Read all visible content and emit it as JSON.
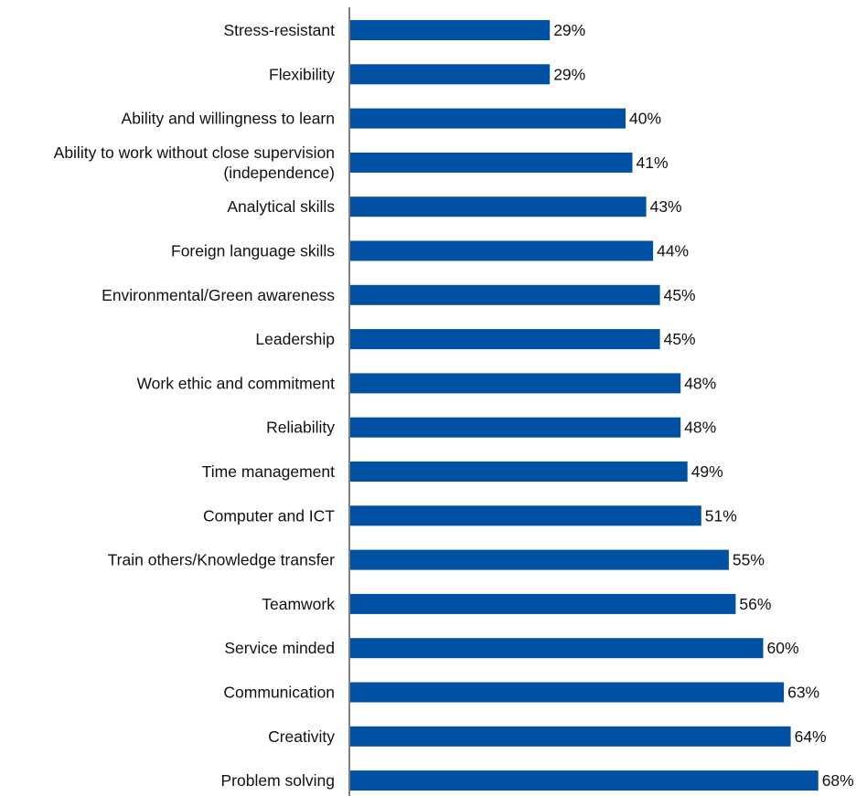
{
  "chart_data": {
    "type": "bar",
    "orientation": "horizontal",
    "title": "",
    "xlabel": "",
    "ylabel": "",
    "categories": [
      [
        "Stress-resistant"
      ],
      [
        "Flexibility"
      ],
      [
        "Ability and willingness to learn"
      ],
      [
        "Ability to work without close supervision",
        "(independence)"
      ],
      [
        "Analytical skills"
      ],
      [
        "Foreign language skills"
      ],
      [
        "Environmental/Green awareness"
      ],
      [
        "Leadership"
      ],
      [
        "Work ethic and commitment"
      ],
      [
        "Reliability"
      ],
      [
        "Time management"
      ],
      [
        "Computer and ICT"
      ],
      [
        "Train others/Knowledge transfer"
      ],
      [
        "Teamwork"
      ],
      [
        "Service minded"
      ],
      [
        "Communication"
      ],
      [
        "Creativity"
      ],
      [
        "Problem solving"
      ]
    ],
    "values": [
      29,
      29,
      40,
      41,
      43,
      44,
      45,
      45,
      48,
      48,
      49,
      51,
      55,
      56,
      60,
      63,
      64,
      68
    ],
    "value_labels": [
      "29%",
      "29%",
      "40%",
      "41%",
      "43%",
      "44%",
      "45%",
      "45%",
      "48%",
      "48%",
      "49%",
      "51%",
      "55%",
      "56%",
      "60%",
      "63%",
      "64%",
      "68%"
    ],
    "xlim": [
      0,
      100
    ],
    "bar_color": "#0050A4",
    "axis_color": "#808080",
    "grid": false,
    "legend": "none"
  }
}
